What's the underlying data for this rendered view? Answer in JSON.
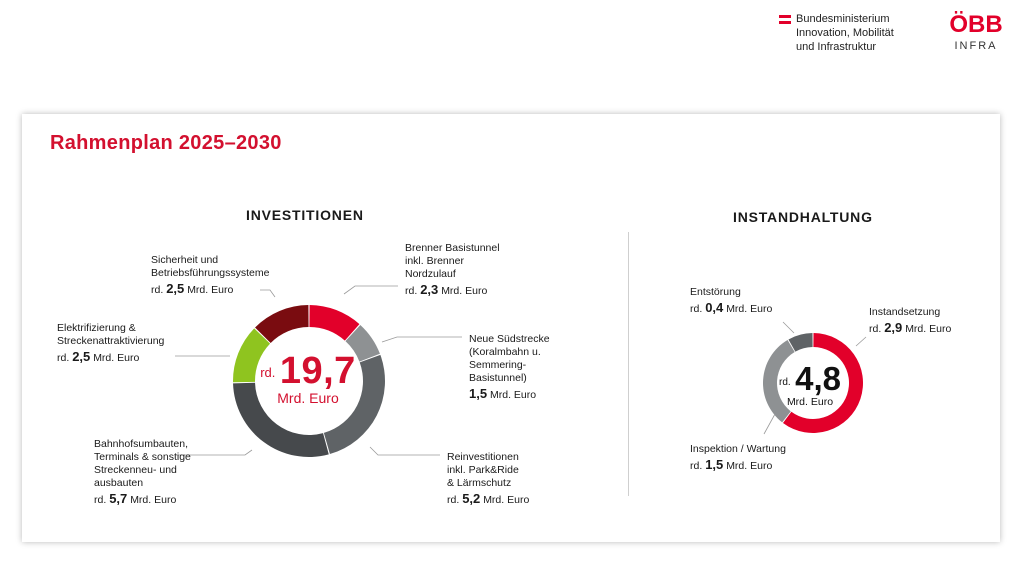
{
  "header": {
    "ministry_lines": [
      "Bundesministerium",
      "Innovation, Mobilität",
      "und Infrastruktur"
    ],
    "logo_word": "ÖBB",
    "logo_sub": "INFRA"
  },
  "title": "Rahmenplan 2025–2030",
  "colors": {
    "accent_red": "#e2002a",
    "dark_red": "#7a0c10",
    "grey_light": "#8e9193",
    "grey_mid": "#5f6366",
    "grey_dark": "#46494c",
    "green": "#8fc41f"
  },
  "chart_data": [
    {
      "type": "pie",
      "title": "INVESTITIONEN",
      "center": {
        "prefix": "rd.",
        "value": "19,7",
        "unit": "Mrd. Euro"
      },
      "slices": [
        {
          "key": "brenner",
          "value": 2.3,
          "color": "#e2002a",
          "label_lines": [
            "Brenner Basistunnel",
            "inkl. Brenner",
            "Nordzulauf"
          ],
          "prefix": "rd.",
          "value_text": "2,3",
          "unit": "Mrd. Euro"
        },
        {
          "key": "suedstrecke",
          "value": 1.5,
          "color": "#8e9193",
          "label_lines": [
            "Neue Südstrecke",
            "(Koralmbahn u.",
            "Semmering-",
            "Basistunnel)"
          ],
          "prefix": "",
          "value_text": "1,5",
          "unit": "Mrd. Euro"
        },
        {
          "key": "reinvest",
          "value": 5.2,
          "color": "#5f6366",
          "label_lines": [
            "Reinvestitionen",
            "inkl. Park&Ride",
            "& Lärmschutz"
          ],
          "prefix": "rd.",
          "value_text": "5,2",
          "unit": "Mrd. Euro"
        },
        {
          "key": "bahnhof",
          "value": 5.7,
          "color": "#46494c",
          "label_lines": [
            "Bahnhofsumbauten,",
            "Terminals & sonstige",
            "Streckenneu- und",
            "ausbauten"
          ],
          "prefix": "rd.",
          "value_text": "5,7",
          "unit": "Mrd. Euro"
        },
        {
          "key": "elektrifizierung",
          "value": 2.5,
          "color": "#8fc41f",
          "label_lines": [
            "Elektrifizierung &",
            "Streckenattraktivierung"
          ],
          "prefix": "rd.",
          "value_text": "2,5",
          "unit": "Mrd. Euro"
        },
        {
          "key": "sicherheit",
          "value": 2.5,
          "color": "#7a0c10",
          "label_lines": [
            "Sicherheit und",
            "Betriebsführungssysteme"
          ],
          "prefix": "rd.",
          "value_text": "2,5",
          "unit": "Mrd. Euro"
        }
      ]
    },
    {
      "type": "pie",
      "title": "INSTANDHALTUNG",
      "center": {
        "prefix": "rd.",
        "value": "4,8",
        "unit": "Mrd. Euro"
      },
      "slices": [
        {
          "key": "instandsetzung",
          "value": 2.9,
          "color": "#e2002a",
          "label_lines": [
            "Instandsetzung"
          ],
          "prefix": "rd.",
          "value_text": "2,9",
          "unit": "Mrd. Euro"
        },
        {
          "key": "inspektion",
          "value": 1.5,
          "color": "#8e9193",
          "label_lines": [
            "Inspektion / Wartung"
          ],
          "prefix": "rd.",
          "value_text": "1,5",
          "unit": "Mrd. Euro"
        },
        {
          "key": "entstoerung",
          "value": 0.4,
          "color": "#5f6366",
          "label_lines": [
            "Entstörung"
          ],
          "prefix": "rd.",
          "value_text": "0,4",
          "unit": "Mrd. Euro"
        }
      ]
    }
  ]
}
